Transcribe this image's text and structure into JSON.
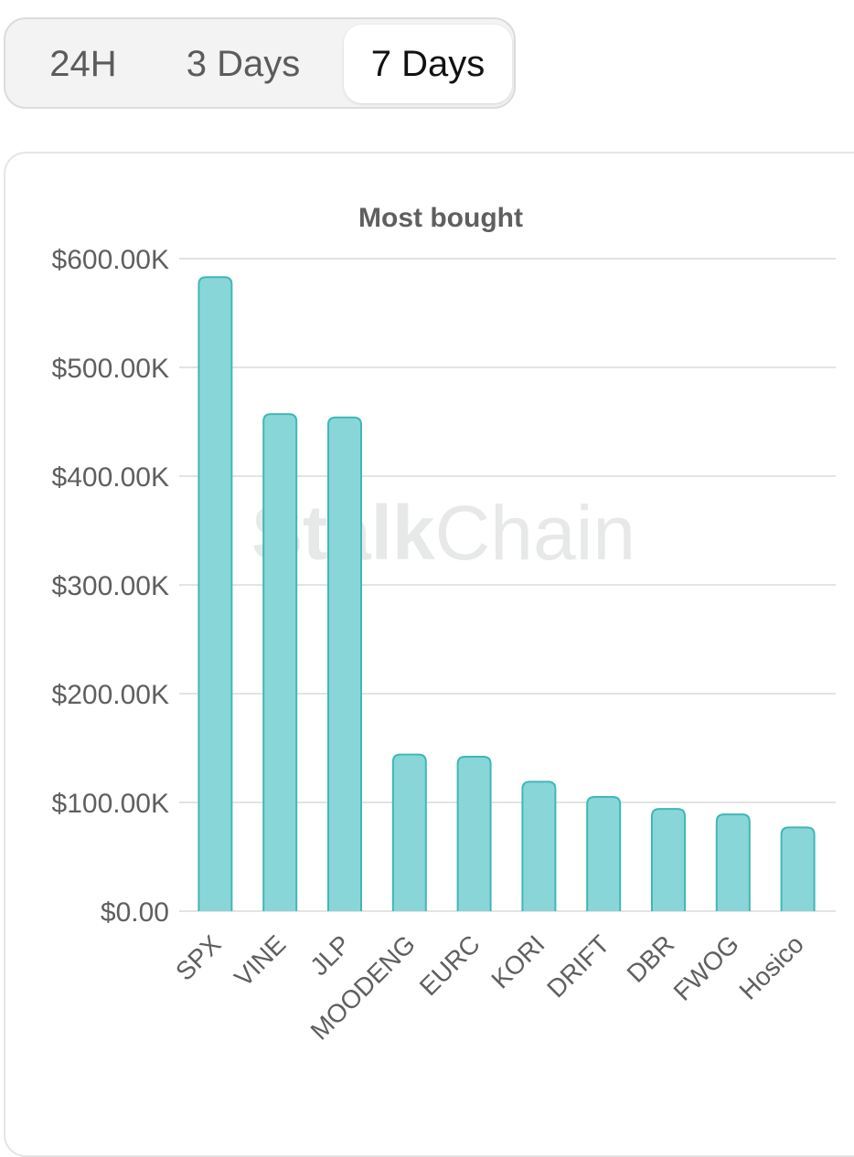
{
  "tabs": [
    {
      "label": "24H",
      "selected": false
    },
    {
      "label": "3 Days",
      "selected": false
    },
    {
      "label": "7 Days",
      "selected": true
    }
  ],
  "watermark": {
    "strong": "Stalk",
    "light": "Chain"
  },
  "colors": {
    "bar_fill": "#89d6d8",
    "bar_stroke": "#3fb8b6",
    "grid": "#e3e3e3",
    "axis_text": "#5f5f5f",
    "title": "#5f5f5f"
  },
  "chart_data": {
    "type": "bar",
    "title": "Most bought",
    "xlabel": "",
    "ylabel": "",
    "categories": [
      "SPX",
      "VINE",
      "JLP",
      "MOODENG",
      "EURC",
      "KORI",
      "DRIFT",
      "DBR",
      "FWOG",
      "Hosico"
    ],
    "values": [
      583000,
      457000,
      454000,
      144000,
      142000,
      119000,
      105000,
      94000,
      89000,
      77000
    ],
    "ylim": [
      0,
      600000
    ],
    "yticks": [
      0,
      100000,
      200000,
      300000,
      400000,
      500000,
      600000
    ],
    "ytick_labels": [
      "$0.00",
      "$100.00K",
      "$200.00K",
      "$300.00K",
      "$400.00K",
      "$500.00K",
      "$600.00K"
    ],
    "grid": true,
    "legend": "none"
  }
}
